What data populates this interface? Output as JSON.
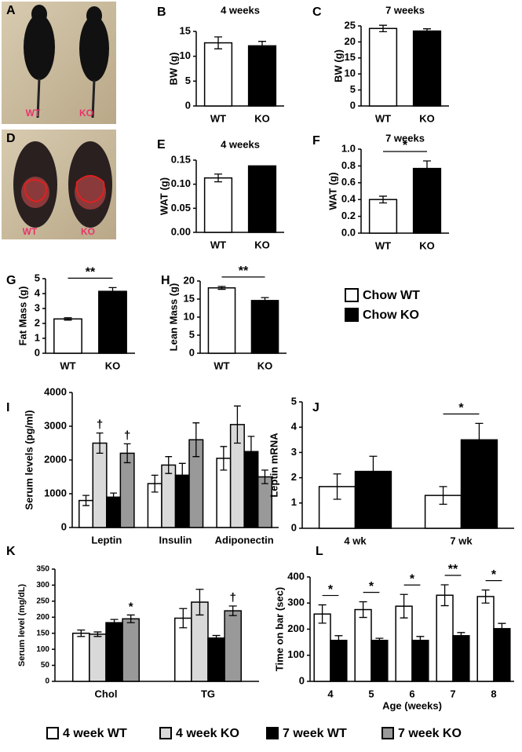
{
  "photos": [
    {
      "panel": "A",
      "labels": [
        "WT",
        "KO"
      ]
    },
    {
      "panel": "D",
      "labels": [
        "WT",
        "KO"
      ]
    }
  ],
  "chart_data": [
    {
      "type": "bar",
      "panel": "B",
      "title": "4 weeks",
      "ylabel": "BW (g)",
      "categories": [
        "WT",
        "KO"
      ],
      "values": [
        12.7,
        12.1
      ],
      "errors": [
        1.2,
        0.9
      ],
      "colors": [
        "#ffffff",
        "#000000"
      ],
      "ylim": [
        0,
        15
      ],
      "yticks": [
        0,
        5,
        10,
        15
      ]
    },
    {
      "type": "bar",
      "panel": "C",
      "title": "7 weeks",
      "ylabel": "BW (g)",
      "categories": [
        "WT",
        "KO"
      ],
      "values": [
        24.2,
        23.4
      ],
      "errors": [
        1.0,
        0.7
      ],
      "colors": [
        "#ffffff",
        "#000000"
      ],
      "ylim": [
        0,
        25
      ],
      "yticks": [
        0,
        5,
        10,
        15,
        20,
        25
      ]
    },
    {
      "type": "bar",
      "panel": "E",
      "title": "4 weeks",
      "ylabel": "WAT (g)",
      "categories": [
        "WT",
        "KO"
      ],
      "values": [
        0.113,
        0.138
      ],
      "errors": [
        0.008,
        null
      ],
      "colors": [
        "#ffffff",
        "#000000"
      ],
      "ylim": [
        0,
        0.15
      ],
      "yticks": [
        {
          "value": 0,
          "label": "0.00"
        },
        {
          "value": 0.05,
          "label": "0.05"
        },
        {
          "value": 0.1,
          "label": "0.10"
        },
        {
          "value": 0.15,
          "label": "0.15"
        }
      ]
    },
    {
      "type": "bar",
      "panel": "F",
      "title": "7 weeks",
      "ylabel": "WAT (g)",
      "categories": [
        "WT",
        "KO"
      ],
      "values": [
        0.4,
        0.77
      ],
      "errors": [
        0.04,
        0.09
      ],
      "colors": [
        "#ffffff",
        "#000000"
      ],
      "significance": "*",
      "ylim": [
        0,
        1.0
      ],
      "yticks": [
        {
          "value": 0,
          "label": "0.0"
        },
        0.2,
        0.4,
        0.6,
        0.8,
        {
          "value": 1,
          "label": "1.0"
        }
      ]
    },
    {
      "type": "bar",
      "panel": "G",
      "ylabel": "Fat Mass (g)",
      "categories": [
        "WT",
        "KO"
      ],
      "values": [
        2.3,
        4.15
      ],
      "errors": [
        0.08,
        0.25
      ],
      "colors": [
        "#ffffff",
        "#000000"
      ],
      "significance": "**",
      "ylim": [
        0,
        5
      ],
      "yticks": [
        0,
        1,
        2,
        3,
        4,
        5
      ]
    },
    {
      "type": "bar",
      "panel": "H",
      "ylabel": "Lean Mass (g)",
      "categories": [
        "WT",
        "KO"
      ],
      "values": [
        18.1,
        14.6
      ],
      "errors": [
        0.4,
        0.8
      ],
      "colors": [
        "#ffffff",
        "#000000"
      ],
      "significance": "**",
      "ylim": [
        0,
        20
      ],
      "yticks": [
        0,
        5,
        10,
        15,
        20
      ],
      "legend": [
        {
          "name": "Chow WT",
          "color": "#ffffff"
        },
        {
          "name": "Chow KO",
          "color": "#000000"
        }
      ]
    },
    {
      "type": "bar",
      "panel": "I",
      "ylabel": "Serum levels (pg/ml)",
      "categories": [
        "Leptin",
        "Insulin",
        "Adiponectin"
      ],
      "ylim": [
        0,
        4000
      ],
      "yticks": [
        0,
        1000,
        2000,
        3000,
        4000
      ],
      "series": [
        {
          "name": "4 week WT",
          "color": "#ffffff",
          "values": [
            800,
            1300,
            2050
          ],
          "errors": [
            150,
            250,
            350
          ]
        },
        {
          "name": "4 week KO",
          "color": "#d9d9d9",
          "values": [
            2500,
            1850,
            3050
          ],
          "errors": [
            300,
            250,
            550
          ]
        },
        {
          "name": "7 week WT",
          "color": "#000000",
          "values": [
            900,
            1550,
            2250
          ],
          "errors": [
            120,
            350,
            450
          ]
        },
        {
          "name": "7 week KO",
          "color": "#999999",
          "values": [
            2200,
            2600,
            1500
          ],
          "errors": [
            280,
            500,
            200
          ]
        }
      ],
      "annotations": [
        {
          "text": "†",
          "category": 0,
          "series": 1
        },
        {
          "text": "†",
          "category": 0,
          "series": 3
        }
      ]
    },
    {
      "type": "bar",
      "panel": "J",
      "ylabel": "Leptin mRNA",
      "categories": [
        "4 wk",
        "7 wk"
      ],
      "ylim": [
        0,
        5
      ],
      "yticks": [
        0,
        1,
        2,
        3,
        4,
        5
      ],
      "series": [
        {
          "color": "#ffffff",
          "values": [
            1.65,
            1.3
          ],
          "errors": [
            0.5,
            0.35
          ]
        },
        {
          "color": "#000000",
          "values": [
            2.25,
            3.5
          ],
          "errors": [
            0.6,
            0.65
          ]
        }
      ],
      "significance": [
        null,
        "*"
      ]
    },
    {
      "type": "bar",
      "panel": "K",
      "ylabel": "Serum level (mg/dL)",
      "categories": [
        "Chol",
        "TG"
      ],
      "ylim": [
        0,
        350
      ],
      "yticks": [
        0,
        50,
        100,
        150,
        200,
        250,
        300,
        350
      ],
      "series": [
        {
          "color": "#ffffff",
          "values": [
            150,
            197
          ],
          "errors": [
            10,
            30
          ]
        },
        {
          "color": "#d9d9d9",
          "values": [
            147,
            247
          ],
          "errors": [
            7,
            40
          ]
        },
        {
          "color": "#000000",
          "values": [
            183,
            135
          ],
          "errors": [
            10,
            8
          ]
        },
        {
          "color": "#999999",
          "values": [
            195,
            220
          ],
          "errors": [
            12,
            15
          ]
        }
      ],
      "annotations": [
        {
          "text": "*",
          "category": 0,
          "series": 3
        },
        {
          "text": "†",
          "category": 1,
          "series": 3
        }
      ]
    },
    {
      "type": "bar",
      "panel": "L",
      "ylabel": "Time on bar (sec)",
      "xlabel": "Age (weeks)",
      "categories": [
        "4",
        "5",
        "6",
        "7",
        "8"
      ],
      "ylim": [
        0,
        400
      ],
      "yticks": [
        0,
        100,
        200,
        300,
        400
      ],
      "series": [
        {
          "color": "#ffffff",
          "values": [
            258,
            275,
            288,
            330,
            325
          ],
          "errors": [
            35,
            30,
            45,
            40,
            25
          ]
        },
        {
          "color": "#000000",
          "values": [
            157,
            157,
            157,
            175,
            202
          ],
          "errors": [
            18,
            8,
            15,
            12,
            20
          ]
        }
      ],
      "significance": [
        "*",
        "*",
        "*",
        "**",
        "*"
      ]
    }
  ]
}
